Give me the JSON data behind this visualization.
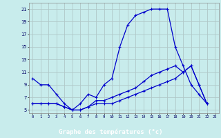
{
  "title": "Graphe des températures (°c)",
  "bg_color": "#c8ecec",
  "grid_color": "#b0c8c8",
  "line_color": "#0000cc",
  "xlabel_bg": "#2222aa",
  "xlabel_fg": "#ffffff",
  "x_min": 0,
  "x_max": 23,
  "y_min": 5,
  "y_max": 21,
  "yticks": [
    5,
    7,
    9,
    11,
    13,
    15,
    17,
    19,
    21
  ],
  "xticks": [
    0,
    1,
    2,
    3,
    4,
    5,
    6,
    7,
    8,
    9,
    10,
    11,
    12,
    13,
    14,
    15,
    16,
    17,
    18,
    19,
    20,
    21,
    22,
    23
  ],
  "line1_x": [
    0,
    1,
    2,
    3,
    4,
    5,
    6,
    7,
    8,
    9,
    10,
    11,
    12,
    13,
    14,
    15,
    16,
    17,
    18,
    19,
    20,
    21,
    22
  ],
  "line1_y": [
    10,
    9,
    9,
    7.5,
    6,
    5,
    6,
    7.5,
    7,
    9,
    10,
    15,
    18.5,
    20,
    20.5,
    21,
    21,
    21,
    15,
    12,
    9,
    7.5,
    6
  ],
  "line2_x": [
    0,
    1,
    2,
    3,
    4,
    5,
    6,
    7,
    8,
    9,
    10,
    11,
    12,
    13,
    14,
    15,
    16,
    17,
    18,
    19,
    20,
    21,
    22
  ],
  "line2_y": [
    6,
    6,
    6,
    6,
    5.5,
    5,
    5,
    5.5,
    6,
    6,
    6,
    6.5,
    7,
    7.5,
    8,
    8.5,
    9,
    9.5,
    10,
    11,
    12,
    9,
    6
  ],
  "line3_x": [
    0,
    1,
    2,
    3,
    4,
    5,
    6,
    7,
    8,
    9,
    10,
    11,
    12,
    13,
    14,
    15,
    16,
    17,
    18,
    19,
    20,
    21,
    22
  ],
  "line3_y": [
    6,
    6,
    6,
    6,
    5.5,
    5,
    5,
    5.5,
    6.5,
    6.5,
    7,
    7.5,
    8,
    8.5,
    9.5,
    10.5,
    11,
    11.5,
    12,
    11,
    12,
    9,
    6
  ]
}
